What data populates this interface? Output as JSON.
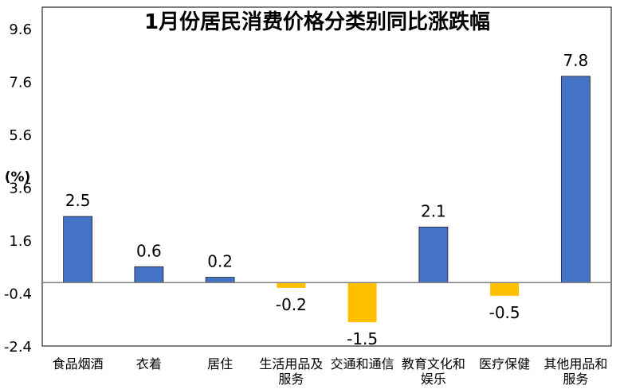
{
  "chart_data": {
    "type": "bar",
    "title": "1月份居民消费价格分类别同比涨跌幅",
    "ylabel": "(%)",
    "xlabel": "",
    "categories": [
      [
        "食品烟酒"
      ],
      [
        "衣着"
      ],
      [
        "居住"
      ],
      [
        "生活用品及",
        "服务"
      ],
      [
        "交通和通信"
      ],
      [
        "教育文化和",
        "娱乐"
      ],
      [
        "医疗保健"
      ],
      [
        "其他用品和",
        "服务"
      ]
    ],
    "values": [
      2.5,
      0.6,
      0.2,
      -0.2,
      -1.5,
      2.1,
      -0.5,
      7.8
    ],
    "data_labels": [
      "2.5",
      "0.6",
      "0.2",
      "-0.2",
      "-1.5",
      "2.1",
      "-0.5",
      "7.8"
    ],
    "yticks": [
      "9.6",
      "7.6",
      "5.6",
      "3.6",
      "1.6",
      "-0.4",
      "-2.4"
    ],
    "ylim": [
      -2.4,
      9.6
    ],
    "grid": false,
    "colors": {
      "positive": "#4472C4",
      "negative": "#FFC000",
      "axis": "#808080"
    }
  }
}
